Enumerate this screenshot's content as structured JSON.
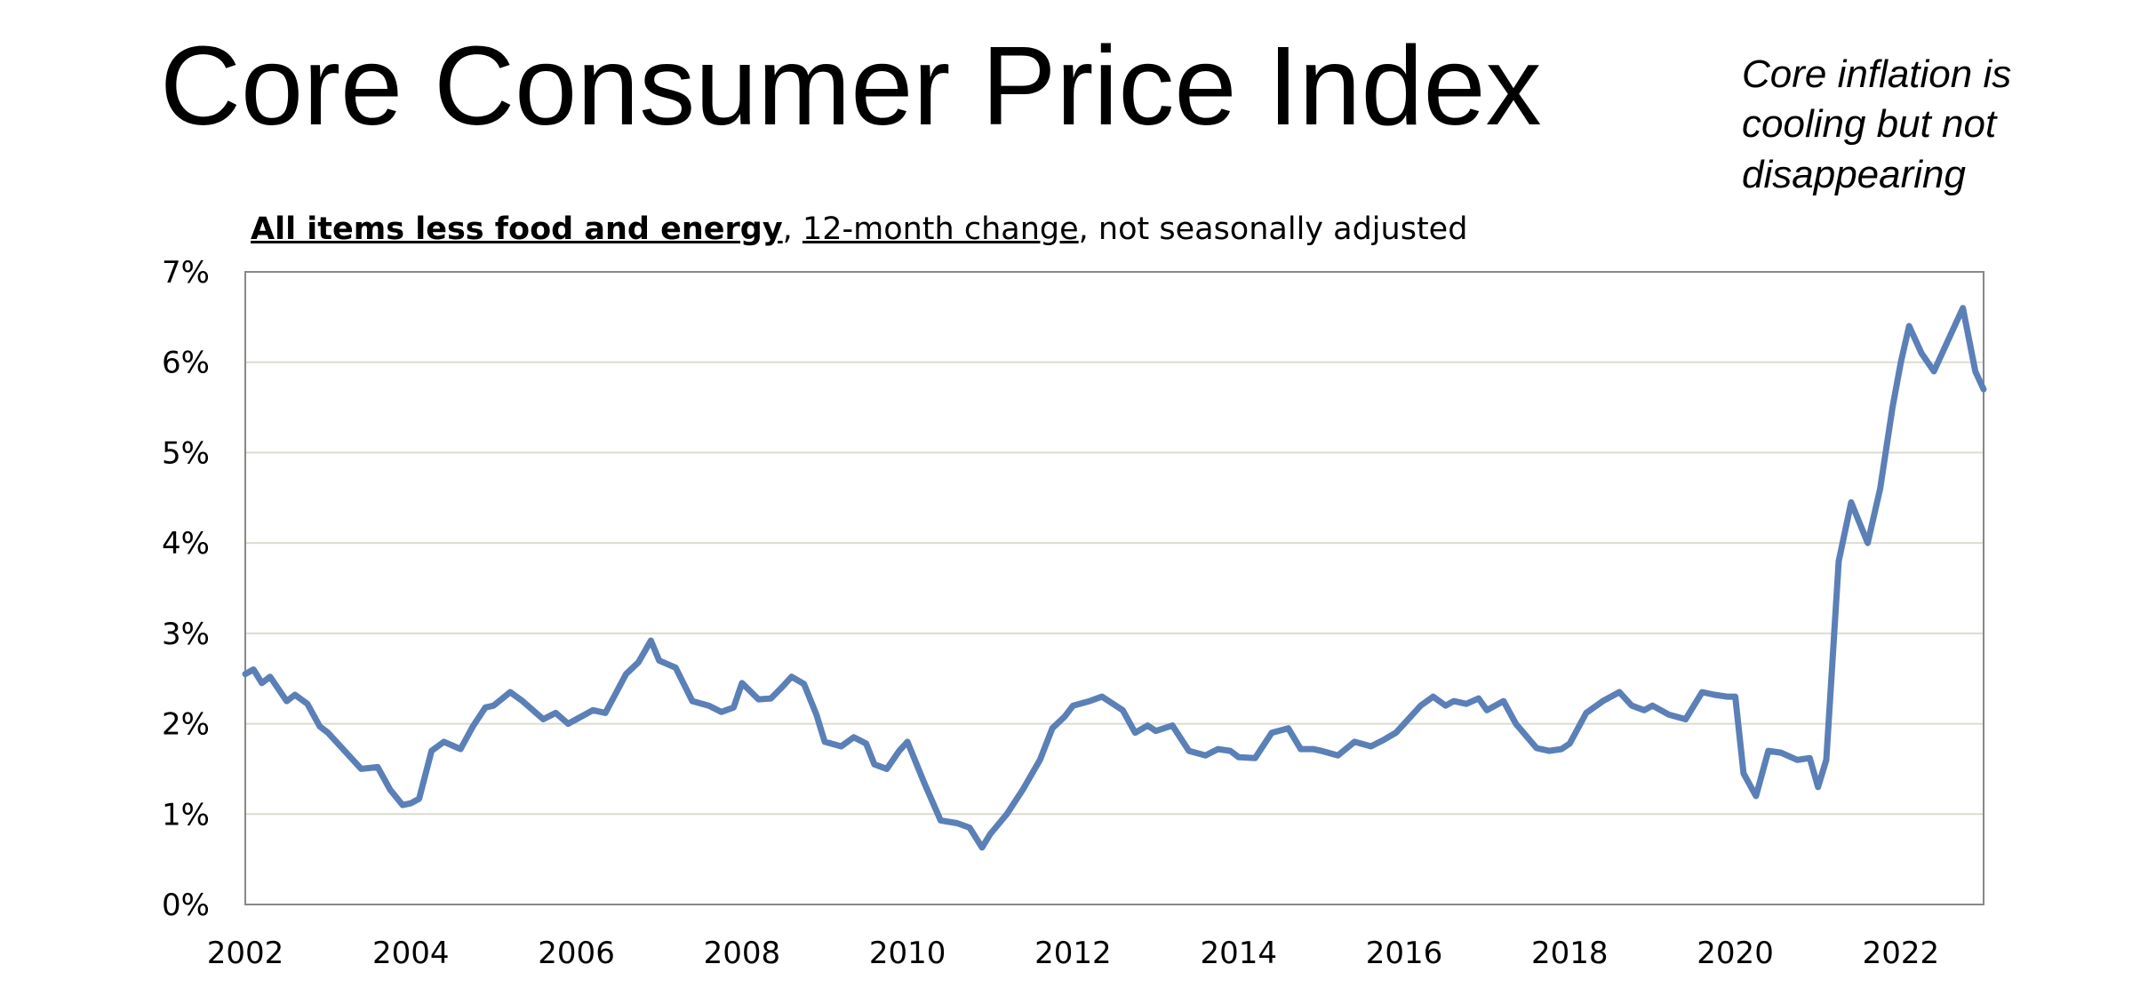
{
  "title": "Core Consumer Price Index",
  "annotation": [
    "Core inflation is",
    "cooling but not",
    "disappearing"
  ],
  "subtitle": {
    "part1": "All items less food and energy",
    "sep1": ", ",
    "part2": "12-month change",
    "sep2": ", ",
    "part3": "not seasonally adjusted"
  },
  "colors": {
    "line": "#5b80b7",
    "grid": "#dcdccf",
    "frame": "#888888"
  },
  "chart_data": {
    "type": "line",
    "title": "Core Consumer Price Index",
    "xlabel": "",
    "ylabel": "",
    "xlim": [
      2002.0,
      2023.0
    ],
    "ylim": [
      0,
      7
    ],
    "grid": true,
    "x_ticks": [
      "2002",
      "2004",
      "2006",
      "2008",
      "2010",
      "2012",
      "2014",
      "2016",
      "2018",
      "2020",
      "2022"
    ],
    "y_ticks": [
      "0%",
      "1%",
      "2%",
      "3%",
      "4%",
      "5%",
      "6%",
      "7%"
    ],
    "series": [
      {
        "name": "All items less food and energy, 12-month change",
        "x": [
          2002.0,
          2002.1,
          2002.2,
          2002.3,
          2002.5,
          2002.6,
          2002.75,
          2002.9,
          2003.0,
          2003.2,
          2003.4,
          2003.6,
          2003.75,
          2003.9,
          2004.0,
          2004.1,
          2004.25,
          2004.4,
          2004.6,
          2004.75,
          2004.9,
          2005.0,
          2005.2,
          2005.35,
          2005.6,
          2005.75,
          2005.9,
          2006.0,
          2006.2,
          2006.35,
          2006.6,
          2006.75,
          2006.9,
          2007.0,
          2007.2,
          2007.4,
          2007.6,
          2007.75,
          2007.9,
          2008.0,
          2008.2,
          2008.35,
          2008.5,
          2008.6,
          2008.75,
          2008.9,
          2009.0,
          2009.2,
          2009.35,
          2009.5,
          2009.6,
          2009.75,
          2009.9,
          2010.0,
          2010.2,
          2010.4,
          2010.6,
          2010.75,
          2010.9,
          2011.0,
          2011.2,
          2011.4,
          2011.6,
          2011.75,
          2011.9,
          2012.0,
          2012.2,
          2012.35,
          2012.6,
          2012.75,
          2012.9,
          2013.0,
          2013.2,
          2013.4,
          2013.6,
          2013.75,
          2013.9,
          2014.0,
          2014.2,
          2014.4,
          2014.6,
          2014.75,
          2014.9,
          2015.0,
          2015.2,
          2015.4,
          2015.6,
          2015.75,
          2015.9,
          2016.0,
          2016.2,
          2016.35,
          2016.5,
          2016.6,
          2016.75,
          2016.9,
          2017.0,
          2017.2,
          2017.35,
          2017.6,
          2017.75,
          2017.9,
          2018.0,
          2018.2,
          2018.4,
          2018.6,
          2018.75,
          2018.9,
          2019.0,
          2019.2,
          2019.4,
          2019.6,
          2019.75,
          2019.9,
          2020.0,
          2020.1,
          2020.25,
          2020.4,
          2020.55,
          2020.75,
          2020.9,
          2021.0,
          2021.1,
          2021.25,
          2021.4,
          2021.6,
          2021.75,
          2021.9,
          2022.0,
          2022.1,
          2022.25,
          2022.4,
          2022.6,
          2022.75,
          2022.9,
          2023.0
        ],
        "y": [
          2.55,
          2.6,
          2.45,
          2.52,
          2.25,
          2.32,
          2.22,
          1.97,
          1.9,
          1.7,
          1.5,
          1.52,
          1.27,
          1.1,
          1.12,
          1.17,
          1.7,
          1.8,
          1.72,
          1.97,
          2.18,
          2.2,
          2.35,
          2.25,
          2.05,
          2.12,
          2.0,
          2.05,
          2.15,
          2.12,
          2.55,
          2.68,
          2.92,
          2.7,
          2.62,
          2.25,
          2.2,
          2.13,
          2.18,
          2.45,
          2.27,
          2.28,
          2.42,
          2.52,
          2.44,
          2.1,
          1.8,
          1.75,
          1.85,
          1.78,
          1.55,
          1.5,
          1.7,
          1.8,
          1.35,
          0.93,
          0.9,
          0.85,
          0.63,
          0.78,
          1.0,
          1.28,
          1.6,
          1.95,
          2.08,
          2.2,
          2.25,
          2.3,
          2.15,
          1.9,
          1.98,
          1.92,
          1.98,
          1.7,
          1.65,
          1.72,
          1.7,
          1.63,
          1.62,
          1.9,
          1.95,
          1.72,
          1.72,
          1.7,
          1.65,
          1.8,
          1.75,
          1.82,
          1.9,
          2.0,
          2.2,
          2.3,
          2.2,
          2.25,
          2.22,
          2.28,
          2.15,
          2.25,
          2.0,
          1.73,
          1.7,
          1.72,
          1.78,
          2.12,
          2.25,
          2.35,
          2.2,
          2.15,
          2.2,
          2.1,
          2.05,
          2.35,
          2.32,
          2.3,
          2.3,
          1.45,
          1.2,
          1.7,
          1.68,
          1.6,
          1.62,
          1.3,
          1.6,
          3.8,
          4.45,
          4.0,
          4.6,
          5.5,
          6.0,
          6.4,
          6.1,
          5.9,
          6.3,
          6.6,
          5.9,
          5.7
        ]
      }
    ]
  }
}
